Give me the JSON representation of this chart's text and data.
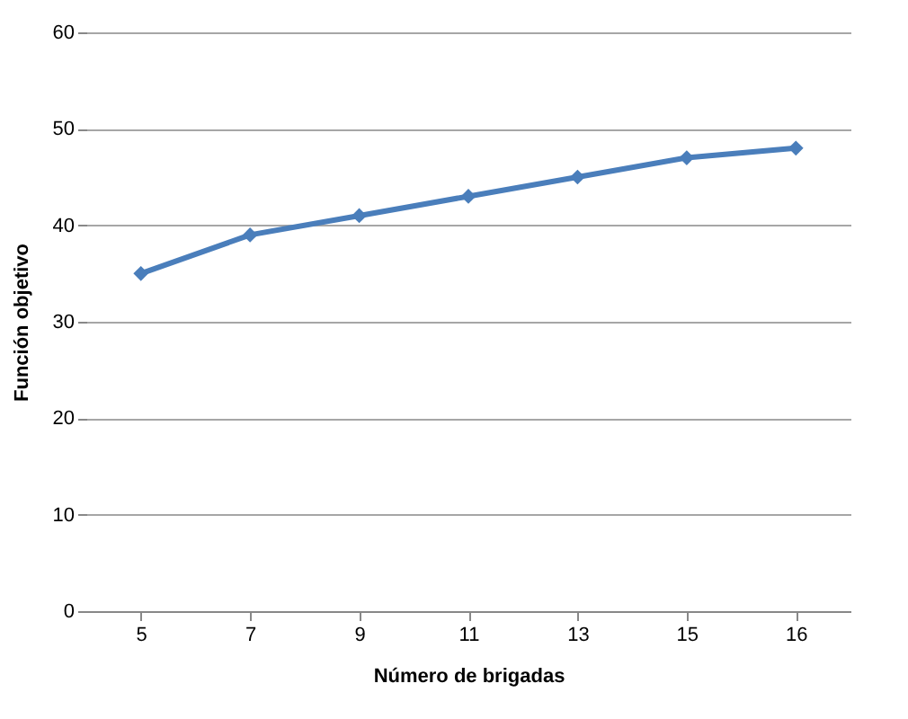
{
  "chart_data": {
    "type": "line",
    "xlabel": "Número de brigadas",
    "ylabel": "Función objetivo",
    "categories": [
      "5",
      "7",
      "9",
      "11",
      "13",
      "15",
      "16"
    ],
    "series": [
      {
        "color": "#4a7ebb",
        "values": [
          35,
          39,
          41,
          43,
          45,
          47,
          48
        ]
      }
    ],
    "ylim": [
      0,
      60
    ],
    "yticks": [
      0,
      10,
      20,
      30,
      40,
      50,
      60
    ],
    "grid": "y",
    "marker": "diamond",
    "line_style": "solid"
  }
}
